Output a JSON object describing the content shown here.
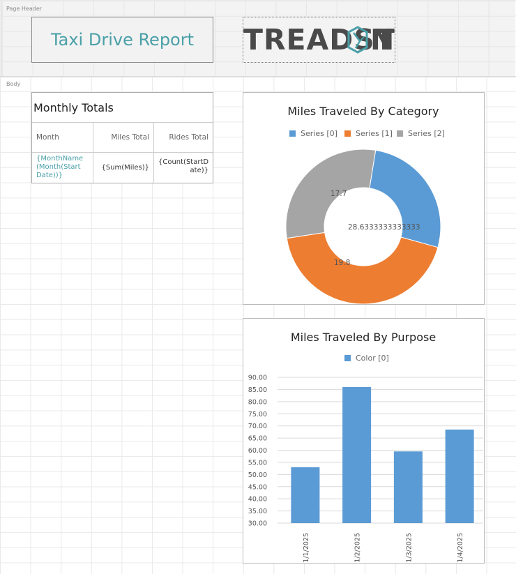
{
  "bands": {
    "header_label": "Page Header",
    "body_label": "Body"
  },
  "header": {
    "report_title": "Taxi Drive Report",
    "logo_text_left": "TREADST",
    "logo_text_right": "NE"
  },
  "table": {
    "title": "Monthly Totals",
    "columns": [
      "Month",
      "Miles Total",
      "Rides Total"
    ],
    "row": [
      "{MonthName (Month(Start Date))}",
      "{Sum(Miles)}",
      "{Count(StartD ate)}"
    ]
  },
  "colors": {
    "series0": "#5b9bd5",
    "series1": "#ed7d31",
    "series2": "#a5a5a5",
    "accent": "#4aa0a8"
  },
  "chart_data": [
    {
      "type": "pie",
      "title": "Miles Traveled By Category",
      "legend_position": "top",
      "series": [
        {
          "name": "Series [0]",
          "value": 17.7,
          "label": "17.7"
        },
        {
          "name": "Series [1]",
          "value": 28.6333333333333,
          "label": "28.6333333333333"
        },
        {
          "name": "Series [2]",
          "value": 19.8,
          "label": "19.8"
        }
      ]
    },
    {
      "type": "bar",
      "title": "Miles Traveled By Purpose",
      "legend_position": "top",
      "categories": [
        "1/1/2025",
        "1/2/2025",
        "1/3/2025",
        "1/4/2025"
      ],
      "series": [
        {
          "name": "Color [0]",
          "values": [
            53,
            86,
            59.5,
            68.5
          ]
        }
      ],
      "ylim": [
        30,
        90
      ],
      "yticks": [
        "90.00",
        "85.00",
        "80.00",
        "75.00",
        "70.00",
        "65.00",
        "60.00",
        "55.00",
        "50.00",
        "45.00",
        "40.00",
        "35.00",
        "30.00"
      ],
      "grid": true
    }
  ]
}
